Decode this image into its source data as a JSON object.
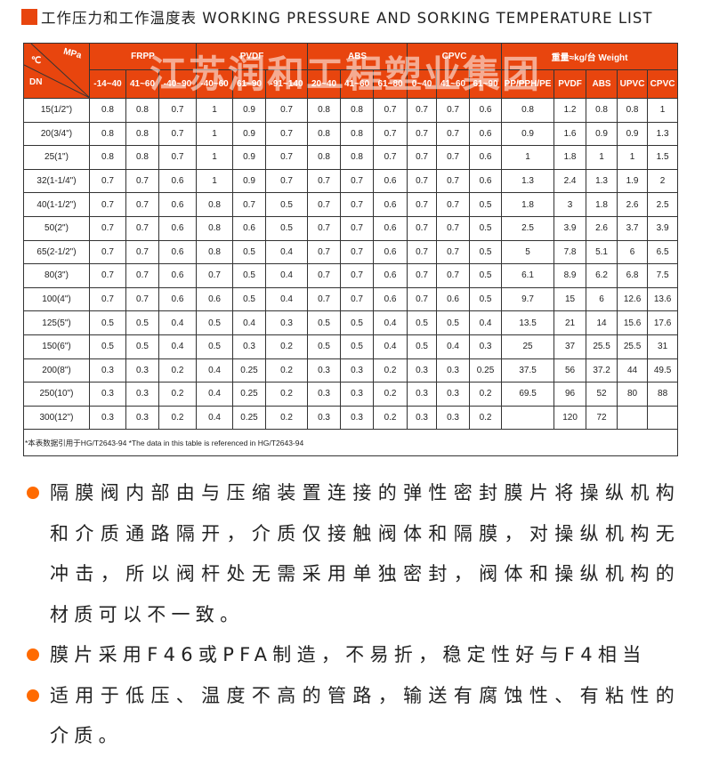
{
  "title": "工作压力和工作温度表 WORKING PRESSURE AND SORKING TEMPERATURE LIST",
  "watermark": "江苏润和工程塑业集团",
  "colors": {
    "accent": "#e8450e",
    "bullet": "#ff6a00"
  },
  "table": {
    "corner": {
      "temp": "℃",
      "pressure": "MPa",
      "dn": "DN"
    },
    "groups": [
      "FRPP",
      "PVDF",
      "ABS",
      "CPVC",
      "重量≈kg/台 Weight"
    ],
    "subheaders": [
      "-14~40",
      "41~60",
      "-40~90",
      "-40~60",
      "61~90",
      "-91~140",
      "20~40",
      "41~60",
      "61~80",
      "0~40",
      "41~60",
      "61~90",
      "PP/PPH/PE",
      "PVDF",
      "ABS",
      "UPVC",
      "CPVC"
    ],
    "rows": [
      [
        "15(1/2\")",
        "0.8",
        "0.8",
        "0.7",
        "1",
        "0.9",
        "0.7",
        "0.8",
        "0.8",
        "0.7",
        "0.7",
        "0.7",
        "0.6",
        "0.8",
        "1.2",
        "0.8",
        "0.8",
        "1"
      ],
      [
        "20(3/4\")",
        "0.8",
        "0.8",
        "0.7",
        "1",
        "0.9",
        "0.7",
        "0.8",
        "0.8",
        "0.7",
        "0.7",
        "0.7",
        "0.6",
        "0.9",
        "1.6",
        "0.9",
        "0.9",
        "1.3"
      ],
      [
        "25(1\")",
        "0.8",
        "0.8",
        "0.7",
        "1",
        "0.9",
        "0.7",
        "0.8",
        "0.8",
        "0.7",
        "0.7",
        "0.7",
        "0.6",
        "1",
        "1.8",
        "1",
        "1",
        "1.5"
      ],
      [
        "32(1-1/4\")",
        "0.7",
        "0.7",
        "0.6",
        "1",
        "0.9",
        "0.7",
        "0.7",
        "0.7",
        "0.6",
        "0.7",
        "0.7",
        "0.6",
        "1.3",
        "2.4",
        "1.3",
        "1.9",
        "2"
      ],
      [
        "40(1-1/2\")",
        "0.7",
        "0.7",
        "0.6",
        "0.8",
        "0.7",
        "0.5",
        "0.7",
        "0.7",
        "0.6",
        "0.7",
        "0.7",
        "0.5",
        "1.8",
        "3",
        "1.8",
        "2.6",
        "2.5"
      ],
      [
        "50(2\")",
        "0.7",
        "0.7",
        "0.6",
        "0.8",
        "0.6",
        "0.5",
        "0.7",
        "0.7",
        "0.6",
        "0.7",
        "0.7",
        "0.5",
        "2.5",
        "3.9",
        "2.6",
        "3.7",
        "3.9"
      ],
      [
        "65(2-1/2\")",
        "0.7",
        "0.7",
        "0.6",
        "0.8",
        "0.5",
        "0.4",
        "0.7",
        "0.7",
        "0.6",
        "0.7",
        "0.7",
        "0.5",
        "5",
        "7.8",
        "5.1",
        "6",
        "6.5"
      ],
      [
        "80(3\")",
        "0.7",
        "0.7",
        "0.6",
        "0.7",
        "0.5",
        "0.4",
        "0.7",
        "0.7",
        "0.6",
        "0.7",
        "0.7",
        "0.5",
        "6.1",
        "8.9",
        "6.2",
        "6.8",
        "7.5"
      ],
      [
        "100(4\")",
        "0.7",
        "0.7",
        "0.6",
        "0.6",
        "0.5",
        "0.4",
        "0.7",
        "0.7",
        "0.6",
        "0.7",
        "0.6",
        "0.5",
        "9.7",
        "15",
        "6",
        "12.6",
        "13.6"
      ],
      [
        "125(5\")",
        "0.5",
        "0.5",
        "0.4",
        "0.5",
        "0.4",
        "0.3",
        "0.5",
        "0.5",
        "0.4",
        "0.5",
        "0.5",
        "0.4",
        "13.5",
        "21",
        "14",
        "15.6",
        "17.6"
      ],
      [
        "150(6\")",
        "0.5",
        "0.5",
        "0.4",
        "0.5",
        "0.3",
        "0.2",
        "0.5",
        "0.5",
        "0.4",
        "0.5",
        "0.4",
        "0.3",
        "25",
        "37",
        "25.5",
        "25.5",
        "31"
      ],
      [
        "200(8\")",
        "0.3",
        "0.3",
        "0.2",
        "0.4",
        "0.25",
        "0.2",
        "0.3",
        "0.3",
        "0.2",
        "0.3",
        "0.3",
        "0.25",
        "37.5",
        "56",
        "37.2",
        "44",
        "49.5"
      ],
      [
        "250(10\")",
        "0.3",
        "0.3",
        "0.2",
        "0.4",
        "0.25",
        "0.2",
        "0.3",
        "0.3",
        "0.2",
        "0.3",
        "0.3",
        "0.2",
        "69.5",
        "96",
        "52",
        "80",
        "88"
      ],
      [
        "300(12\")",
        "0.3",
        "0.3",
        "0.2",
        "0.4",
        "0.25",
        "0.2",
        "0.3",
        "0.3",
        "0.2",
        "0.3",
        "0.3",
        "0.2",
        "",
        "120",
        "72",
        "",
        ""
      ]
    ],
    "footnote": "*本表数据引用于HG/T2643-94  *The data in this table is referenced in HG/T2643-94"
  },
  "bullets": [
    "隔膜阀内部由与压缩装置连接的弹性密封膜片将操纵机构和介质通路隔开，介质仅接触阀体和隔膜，对操纵机构无冲击，所以阀杆处无需采用单独密封，阀体和操纵机构的材质可以不一致。",
    "膜片采用F46或PFA制造，不易折，稳定性好与F4相当",
    "适用于低压、温度不高的管路，输送有腐蚀性、有粘性的介质。"
  ]
}
